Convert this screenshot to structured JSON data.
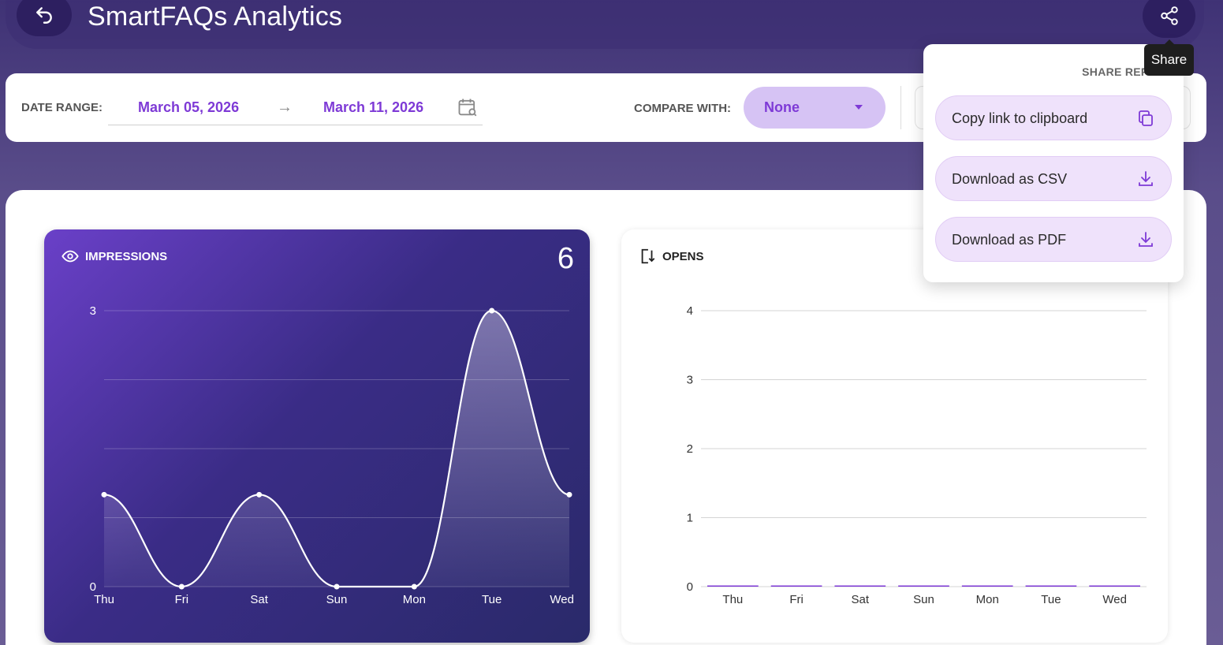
{
  "header": {
    "title": "SmartFAQs Analytics",
    "back_icon": "undo-arrow-icon",
    "share_icon": "share-icon",
    "share_tooltip": "Share"
  },
  "filters": {
    "date_range_label": "DATE RANGE:",
    "start_date": "March 05, 2026",
    "arrow": "→",
    "end_date": "March 11, 2026",
    "compare_label": "COMPARE WITH:",
    "compare_value": "None"
  },
  "share_menu": {
    "heading": "SHARE REPORT",
    "items": [
      {
        "label": "Copy link to clipboard",
        "icon": "copy-icon"
      },
      {
        "label": "Download as CSV",
        "icon": "download-icon"
      },
      {
        "label": "Download as PDF",
        "icon": "download-icon"
      }
    ]
  },
  "colors": {
    "accent": "#7e3ad6",
    "menu_button_bg": "#efe2fb",
    "impressions_card_start": "#6a40c8",
    "impressions_card_end": "#2a2a6a"
  },
  "chart_data": [
    {
      "type": "area",
      "title": "IMPRESSIONS",
      "total": "6",
      "categories": [
        "Thu",
        "Fri",
        "Sat",
        "Sun",
        "Mon",
        "Tue",
        "Wed"
      ],
      "values": [
        1,
        0,
        1,
        0,
        0,
        3,
        1
      ],
      "y_ticks": [
        0,
        3
      ],
      "ylim": [
        0,
        3
      ],
      "grid": true
    },
    {
      "type": "bar",
      "title": "OPENS",
      "categories": [
        "Thu",
        "Fri",
        "Sat",
        "Sun",
        "Mon",
        "Tue",
        "Wed"
      ],
      "values": [
        0,
        0,
        0,
        0,
        0,
        0,
        0
      ],
      "y_ticks": [
        0,
        1,
        2,
        3,
        4
      ],
      "ylim": [
        0,
        4
      ],
      "grid": true
    }
  ]
}
